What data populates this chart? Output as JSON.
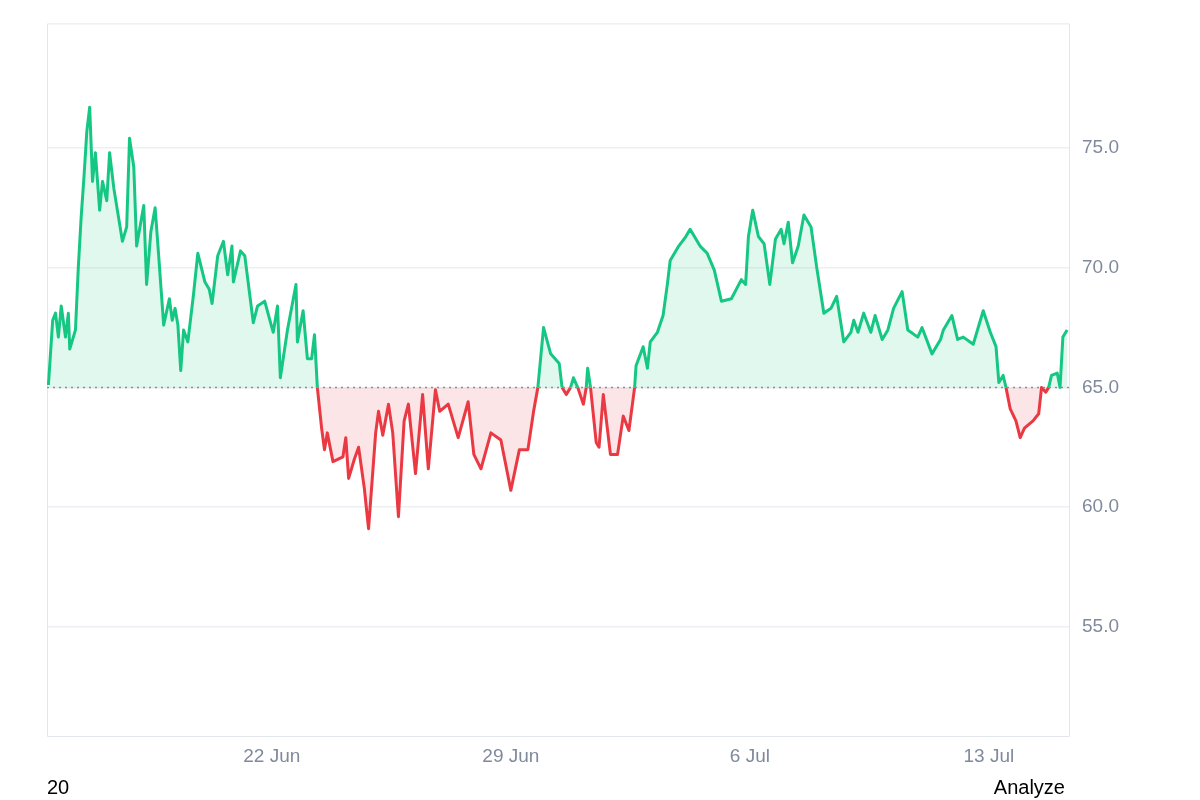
{
  "chart_data": {
    "type": "area",
    "xlim": [
      "--06-15T10:00",
      "--07-15T09:00"
    ],
    "ylim": [
      50.4,
      80.2
    ],
    "xticks": [
      {
        "value": "--06-22",
        "label": "22 Jun"
      },
      {
        "value": "--06-29",
        "label": "29 Jun"
      },
      {
        "value": "--07-06",
        "label": "6 Jul"
      },
      {
        "value": "--07-13",
        "label": "13 Jul"
      }
    ],
    "yticks": [
      {
        "value": 55,
        "label": "55.0"
      },
      {
        "value": 60,
        "label": "60.0"
      },
      {
        "value": 65,
        "label": "65.0"
      },
      {
        "value": 70,
        "label": "70.0"
      },
      {
        "value": 75,
        "label": "75.0"
      }
    ],
    "grid": "y",
    "marker": "none",
    "ref_lines": [
      {
        "axis": "y",
        "value": 65,
        "color": "#8a8f98",
        "line_style": "dotted"
      }
    ],
    "annotations": [
      "20",
      "Analyze"
    ],
    "series": [
      {
        "color": "#16c784",
        "x": [
          "--06-15T11:00",
          "--06-15T14:00",
          "--06-15T16:00",
          "--06-15T18:00",
          "--06-15T20:00",
          "--06-15T23:00",
          "--06-16T01:00",
          "--06-16T02:00",
          "--06-16T06:00",
          "--06-16T08:00",
          "--06-16T10:00",
          "--06-16T12:00",
          "--06-16T14:00",
          "--06-16T16:00",
          "--06-16T18:00",
          "--06-16T20:00",
          "--06-16T23:00",
          "--06-17T01:00",
          "--06-17T04:00",
          "--06-17T06:00",
          "--06-17T09:00",
          "--06-17T15:00",
          "--06-17T18:00",
          "--06-17T20:00",
          "--06-17T23:00",
          "--06-18T01:00",
          "--06-18T06:00",
          "--06-18T08:00",
          "--06-18T11:00",
          "--06-18T14:00",
          "--06-18T16:00",
          "--06-18T20:00",
          "--06-19T00:00",
          "--06-19T02:00",
          "--06-19T04:00",
          "--06-19T06:00",
          "--06-19T08:00",
          "--06-19T10:00",
          "--06-19T13:00",
          "--06-19T17:00",
          "--06-19T20:00",
          "--06-20T01:00",
          "--06-20T04:00",
          "--06-20T06:00",
          "--06-20T10:00",
          "--06-20T14:00",
          "--06-20T17:00",
          "--06-20T20:00",
          "--06-20T21:00",
          "--06-21T02:00",
          "--06-21T05:00",
          "--06-21T11:00",
          "--06-21T14:00",
          "--06-21T19:00",
          "--06-22T01:00",
          "--06-22T04:00",
          "--06-22T06:00",
          "--06-22T11:00",
          "--06-22T17:00",
          "--06-22T18:00",
          "--06-22T22:00",
          "--06-23T01:00",
          "--06-23T04:00",
          "--06-23T06:00",
          "--06-23T08:00",
          "--06-26T00:00",
          "--06-29T19:00",
          "--06-29T23:00",
          "--06-30T04:00",
          "--06-30T10:00",
          "--06-30T12:00",
          "--06-30T15:00",
          "--06-30T18:00",
          "--06-30T20:00",
          "--06-30T23:00",
          "--07-01T03:00",
          "--07-01T05:00",
          "--07-01T06:00",
          "--07-01T08:00",
          "--07-02T00:00",
          "--07-02T15:00",
          "--07-02T16:00",
          "--07-02T21:00",
          "--07-03T00:00",
          "--07-03T02:00",
          "--07-03T07:00",
          "--07-03T11:00",
          "--07-03T14:00",
          "--07-03T16:00",
          "--07-03T22:00",
          "--07-04T03:00",
          "--07-04T06:00",
          "--07-04T13:00",
          "--07-04T18:00",
          "--07-04T23:00",
          "--07-05T04:00",
          "--07-05T11:00",
          "--07-05T18:00",
          "--07-05T21:00",
          "--07-05T23:00",
          "--07-06T02:00",
          "--07-06T06:00",
          "--07-06T10:00",
          "--07-06T14:00",
          "--07-06T18:00",
          "--07-06T22:00",
          "--07-07T00:00",
          "--07-07T03:00",
          "--07-07T06:00",
          "--07-07T10:00",
          "--07-07T14:00",
          "--07-07T19:00",
          "--07-07T23:00",
          "--07-08T04:00",
          "--07-08T09:00",
          "--07-08T13:00",
          "--07-08T18:00",
          "--07-08T23:00",
          "--07-09T01:00",
          "--07-09T04:00",
          "--07-09T08:00",
          "--07-09T13:00",
          "--07-09T16:00",
          "--07-09T21:00",
          "--07-10T01:00",
          "--07-10T05:00",
          "--07-10T11:00",
          "--07-10T15:00",
          "--07-10T22:00",
          "--07-11T01:00",
          "--07-11T08:00",
          "--07-11T14:00",
          "--07-11T16:00",
          "--07-11T22:00",
          "--07-12T02:00",
          "--07-12T06:00",
          "--07-12T13:00",
          "--07-12T20:00",
          "--07-13T01:00",
          "--07-13T05:00",
          "--07-13T07:00",
          "--07-13T10:00",
          "--07-13T12:00",
          "--07-14T00:00",
          "--07-14T18:00",
          "--07-14T20:00",
          "--07-15T00:00",
          "--07-15T02:00",
          "--07-15T04:00",
          "--07-15T07:00"
        ],
        "values": [
          65.1,
          67.8,
          68.1,
          67.1,
          68.4,
          67.1,
          68.1,
          66.6,
          67.4,
          70.0,
          72.1,
          73.8,
          75.7,
          76.7,
          73.6,
          74.8,
          72.4,
          73.6,
          72.8,
          74.8,
          73.3,
          71.1,
          71.7,
          75.4,
          74.2,
          70.9,
          72.6,
          69.3,
          71.5,
          72.5,
          70.9,
          67.6,
          68.7,
          67.8,
          68.3,
          67.6,
          65.7,
          67.4,
          66.9,
          68.9,
          70.6,
          69.4,
          69.1,
          68.5,
          70.5,
          71.1,
          69.7,
          70.9,
          69.4,
          70.7,
          70.5,
          67.7,
          68.4,
          68.6,
          67.3,
          68.4,
          65.4,
          67.4,
          69.3,
          66.9,
          68.2,
          66.2,
          66.2,
          67.2,
          65.0,
          null,
          65.0,
          67.5,
          66.4,
          66.0,
          65.0,
          null,
          65.0,
          65.4,
          65.0,
          null,
          65.0,
          65.8,
          65.0,
          null,
          65.0,
          65.9,
          66.7,
          65.8,
          66.9,
          67.3,
          68.0,
          69.3,
          70.3,
          70.9,
          71.3,
          71.6,
          70.9,
          70.6,
          69.9,
          68.6,
          68.7,
          69.5,
          69.3,
          71.3,
          72.4,
          71.3,
          71.0,
          69.3,
          71.2,
          71.6,
          71.0,
          71.9,
          70.2,
          70.9,
          72.2,
          71.7,
          70.0,
          68.1,
          68.3,
          68.8,
          66.9,
          67.3,
          67.8,
          67.3,
          68.1,
          67.3,
          68.0,
          67.0,
          67.4,
          68.3,
          69.0,
          67.4,
          67.1,
          67.5,
          66.4,
          67.0,
          67.4,
          68.0,
          67.0,
          67.1,
          66.8,
          68.2,
          67.3,
          66.7,
          65.2,
          65.5,
          65.0,
          null,
          65.0,
          65.5,
          65.6,
          65.0,
          67.1,
          67.4
        ]
      },
      {
        "color": "#ea3943",
        "x": [
          "--06-23T08:00",
          "--06-23T11:00",
          "--06-23T13:00",
          "--06-23T15:00",
          "--06-23T19:00",
          "--06-24T02:00",
          "--06-24T04:00",
          "--06-24T06:00",
          "--06-24T10:00",
          "--06-24T13:00",
          "--06-24T17:00",
          "--06-24T20:00",
          "--06-25T01:00",
          "--06-25T03:00",
          "--06-25T06:00",
          "--06-25T10:00",
          "--06-25T13:00",
          "--06-25T17:00",
          "--06-25T21:00",
          "--06-26T00:00",
          "--06-26T05:00",
          "--06-26T10:00",
          "--06-26T14:00",
          "--06-26T19:00",
          "--06-26T22:00",
          "--06-27T04:00",
          "--06-27T11:00",
          "--06-27T18:00",
          "--06-27T22:00",
          "--06-28T03:00",
          "--06-28T10:00",
          "--06-28T17:00",
          "--06-29T00:00",
          "--06-29T06:00",
          "--06-29T12:00",
          "--06-29T16:00",
          "--06-29T19:00",
          "--06-30T00:00",
          "--06-30T12:00",
          "--06-30T15:00",
          "--06-30T18:00",
          "--06-30T21:00",
          "--06-30T23:00",
          "--07-01T03:00",
          "--07-01T05:00",
          "--07-01T07:00",
          "--07-01T08:00",
          "--07-01T12:00",
          "--07-01T14:00",
          "--07-01T17:00",
          "--07-01T22:00",
          "--07-02T03:00",
          "--07-02T07:00",
          "--07-02T11:00",
          "--07-02T15:00",
          "--07-08T00:00",
          "--07-13T12:00",
          "--07-13T15:00",
          "--07-13T19:00",
          "--07-13T22:00",
          "--07-14T01:00",
          "--07-14T07:00",
          "--07-14T11:00",
          "--07-14T13:00",
          "--07-14T16:00",
          "--07-14T18:00"
        ],
        "values": [
          65.0,
          63.3,
          62.4,
          63.1,
          61.9,
          62.1,
          62.9,
          61.2,
          62.0,
          62.5,
          60.8,
          59.1,
          63.1,
          64.0,
          63.0,
          64.3,
          63.1,
          59.6,
          63.6,
          64.3,
          61.4,
          64.7,
          61.6,
          64.9,
          64.0,
          64.3,
          62.9,
          64.4,
          62.2,
          61.6,
          63.1,
          62.8,
          60.7,
          62.4,
          62.4,
          64.0,
          65.0,
          null,
          65.0,
          64.7,
          65.0,
          null,
          65.0,
          64.3,
          65.0,
          null,
          65.0,
          62.7,
          62.5,
          64.7,
          62.2,
          62.2,
          63.8,
          63.2,
          65.0,
          null,
          65.0,
          64.1,
          63.6,
          62.9,
          63.3,
          63.6,
          63.9,
          65.0,
          64.8,
          65.0
        ]
      }
    ]
  }
}
